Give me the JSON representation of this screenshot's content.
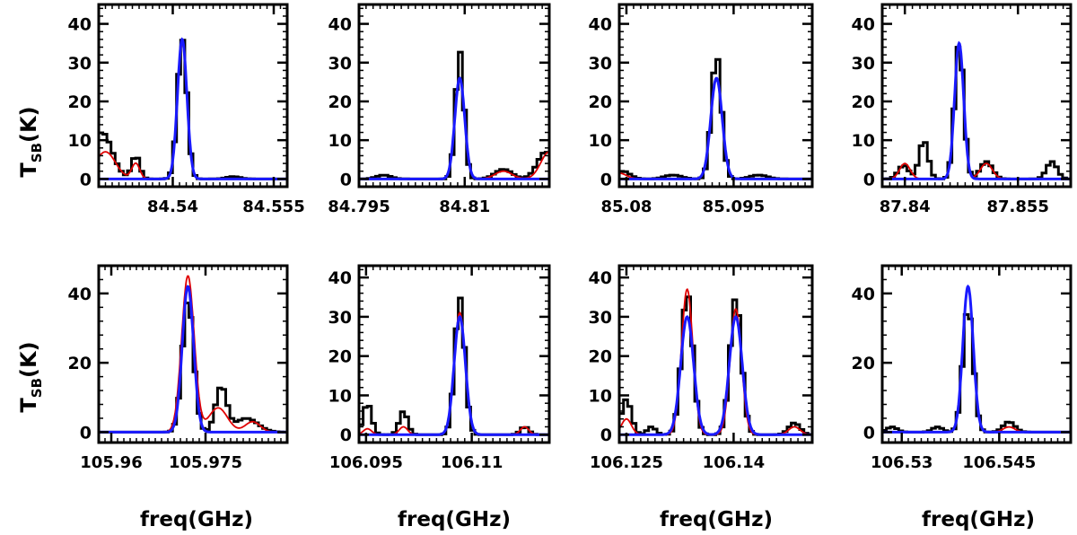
{
  "y_axis_label": {
    "main": "T",
    "sub": "SB",
    "unit": "(K)"
  },
  "x_axis_label": "freq(GHz)",
  "colors": {
    "observed": "#000000",
    "model_red": "#e00000",
    "model_blue": "#1a1aff",
    "frame": "#000000"
  },
  "chart_data": [
    {
      "type": "line",
      "title": "",
      "xlim": [
        84.529,
        84.557
      ],
      "ylim": [
        -2,
        45
      ],
      "xticks": [
        84.54,
        84.555
      ],
      "xtick_labels": [
        "84.54",
        "84.555"
      ],
      "yticks": [
        0,
        10,
        20,
        30,
        40
      ],
      "ytick_labels": [
        "0",
        "10",
        "20",
        "30",
        "40"
      ],
      "series": [
        {
          "name": "observed",
          "style": "step",
          "peaks": [
            {
              "center": 84.5414,
              "amp": 36,
              "sigma": 0.0007
            },
            {
              "center": 84.5295,
              "amp": 12,
              "sigma": 0.0015
            },
            {
              "center": 84.5345,
              "amp": 6,
              "sigma": 0.0006
            },
            {
              "center": 84.549,
              "amp": 0.6,
              "sigma": 0.001
            }
          ]
        },
        {
          "name": "model_red",
          "style": "smooth",
          "peaks": [
            {
              "center": 84.5414,
              "amp": 35,
              "sigma": 0.0007
            },
            {
              "center": 84.53,
              "amp": 7,
              "sigma": 0.0015
            },
            {
              "center": 84.5345,
              "amp": 4,
              "sigma": 0.0006
            }
          ]
        },
        {
          "name": "model_blue",
          "style": "smooth",
          "peaks": [
            {
              "center": 84.5414,
              "amp": 36,
              "sigma": 0.0007
            }
          ]
        }
      ]
    },
    {
      "type": "line",
      "title": "",
      "xlim": [
        84.795,
        84.822
      ],
      "ylim": [
        -2,
        45
      ],
      "xticks": [
        84.795,
        84.81
      ],
      "xtick_labels": [
        "84.795",
        "84.81"
      ],
      "yticks": [
        0,
        10,
        20,
        30,
        40
      ],
      "ytick_labels": [
        "0",
        "10",
        "20",
        "30",
        "40"
      ],
      "series": [
        {
          "name": "observed",
          "style": "step",
          "peaks": [
            {
              "center": 84.8093,
              "amp": 33,
              "sigma": 0.0006
            },
            {
              "center": 84.8215,
              "amp": 7,
              "sigma": 0.0012
            },
            {
              "center": 84.8155,
              "amp": 2.5,
              "sigma": 0.0012
            },
            {
              "center": 84.7985,
              "amp": 1,
              "sigma": 0.001
            }
          ]
        },
        {
          "name": "model_red",
          "style": "smooth",
          "peaks": [
            {
              "center": 84.8093,
              "amp": 26,
              "sigma": 0.0007
            },
            {
              "center": 84.822,
              "amp": 7,
              "sigma": 0.0012
            },
            {
              "center": 84.8155,
              "amp": 2,
              "sigma": 0.0012
            }
          ]
        },
        {
          "name": "model_blue",
          "style": "smooth",
          "peaks": [
            {
              "center": 84.8093,
              "amp": 26,
              "sigma": 0.0007
            }
          ]
        }
      ]
    },
    {
      "type": "line",
      "title": "",
      "xlim": [
        85.079,
        85.106
      ],
      "ylim": [
        -2,
        45
      ],
      "xticks": [
        85.08,
        85.095
      ],
      "xtick_labels": [
        "85.08",
        "85.095"
      ],
      "yticks": [
        0,
        10,
        20,
        30,
        40
      ],
      "ytick_labels": [
        "0",
        "10",
        "20",
        "30",
        "40"
      ],
      "series": [
        {
          "name": "observed",
          "style": "step",
          "peaks": [
            {
              "center": 85.0926,
              "amp": 32,
              "sigma": 0.0007
            },
            {
              "center": 85.0795,
              "amp": 2,
              "sigma": 0.001
            },
            {
              "center": 85.0865,
              "amp": 1,
              "sigma": 0.0012
            },
            {
              "center": 85.0985,
              "amp": 1,
              "sigma": 0.0012
            }
          ]
        },
        {
          "name": "model_red",
          "style": "smooth",
          "peaks": [
            {
              "center": 85.0926,
              "amp": 26,
              "sigma": 0.0008
            },
            {
              "center": 85.079,
              "amp": 1.5,
              "sigma": 0.001
            }
          ]
        },
        {
          "name": "model_blue",
          "style": "smooth",
          "peaks": [
            {
              "center": 85.0926,
              "amp": 26,
              "sigma": 0.0008
            }
          ]
        }
      ]
    },
    {
      "type": "line",
      "title": "",
      "xlim": [
        87.837,
        87.862
      ],
      "ylim": [
        -2,
        45
      ],
      "xticks": [
        87.84,
        87.855
      ],
      "xtick_labels": [
        "87.84",
        "87.855"
      ],
      "yticks": [
        0,
        10,
        20,
        30,
        40
      ],
      "ytick_labels": [
        "0",
        "10",
        "20",
        "30",
        "40"
      ],
      "series": [
        {
          "name": "observed",
          "style": "step",
          "peaks": [
            {
              "center": 87.8472,
              "amp": 35,
              "sigma": 0.0006
            },
            {
              "center": 87.8425,
              "amp": 10,
              "sigma": 0.0006
            },
            {
              "center": 87.8398,
              "amp": 3.5,
              "sigma": 0.0007
            },
            {
              "center": 87.8508,
              "amp": 4.5,
              "sigma": 0.0008
            },
            {
              "center": 87.8595,
              "amp": 4.5,
              "sigma": 0.0007
            }
          ]
        },
        {
          "name": "model_red",
          "style": "smooth",
          "peaks": [
            {
              "center": 87.8472,
              "amp": 34,
              "sigma": 0.0006
            },
            {
              "center": 87.84,
              "amp": 4,
              "sigma": 0.0007
            },
            {
              "center": 87.8508,
              "amp": 4,
              "sigma": 0.0008
            }
          ]
        },
        {
          "name": "model_blue",
          "style": "smooth",
          "peaks": [
            {
              "center": 87.8472,
              "amp": 35,
              "sigma": 0.0006
            }
          ]
        }
      ]
    },
    {
      "type": "line",
      "title": "",
      "xlim": [
        105.958,
        105.988
      ],
      "ylim": [
        -3,
        48
      ],
      "xticks": [
        105.96,
        105.975
      ],
      "xtick_labels": [
        "105.96",
        "105.975"
      ],
      "yticks": [
        0,
        20,
        40
      ],
      "ytick_labels": [
        "0",
        "20",
        "40"
      ],
      "series": [
        {
          "name": "observed",
          "style": "step",
          "peaks": [
            {
              "center": 105.9722,
              "amp": 38,
              "sigma": 0.0009
            },
            {
              "center": 105.9775,
              "amp": 13,
              "sigma": 0.0009
            },
            {
              "center": 105.9815,
              "amp": 4,
              "sigma": 0.0018
            }
          ]
        },
        {
          "name": "model_red",
          "style": "smooth",
          "peaks": [
            {
              "center": 105.9722,
              "amp": 45,
              "sigma": 0.001
            },
            {
              "center": 105.977,
              "amp": 7,
              "sigma": 0.0015
            },
            {
              "center": 105.9825,
              "amp": 3,
              "sigma": 0.0012
            }
          ]
        },
        {
          "name": "model_blue",
          "style": "smooth",
          "peaks": [
            {
              "center": 105.9722,
              "amp": 42,
              "sigma": 0.0009
            }
          ]
        }
      ]
    },
    {
      "type": "line",
      "title": "",
      "xlim": [
        106.094,
        106.121
      ],
      "ylim": [
        -2,
        43
      ],
      "xticks": [
        106.095,
        106.11
      ],
      "xtick_labels": [
        "106.095",
        "106.11"
      ],
      "yticks": [
        0,
        10,
        20,
        30,
        40
      ],
      "ytick_labels": [
        "0",
        "10",
        "20",
        "30",
        "40"
      ],
      "series": [
        {
          "name": "observed",
          "style": "step",
          "peaks": [
            {
              "center": 106.1083,
              "amp": 35,
              "sigma": 0.0007
            },
            {
              "center": 106.0952,
              "amp": 8,
              "sigma": 0.0006
            },
            {
              "center": 106.1003,
              "amp": 6,
              "sigma": 0.0006
            },
            {
              "center": 106.1175,
              "amp": 2,
              "sigma": 0.0006
            }
          ]
        },
        {
          "name": "model_red",
          "style": "smooth",
          "peaks": [
            {
              "center": 106.1083,
              "amp": 31,
              "sigma": 0.0008
            },
            {
              "center": 106.1175,
              "amp": 2,
              "sigma": 0.0006
            },
            {
              "center": 106.0952,
              "amp": 1.5,
              "sigma": 0.0006
            },
            {
              "center": 106.1003,
              "amp": 2,
              "sigma": 0.0006
            }
          ]
        },
        {
          "name": "model_blue",
          "style": "smooth",
          "peaks": [
            {
              "center": 106.1083,
              "amp": 30,
              "sigma": 0.0008
            }
          ]
        }
      ]
    },
    {
      "type": "line",
      "title": "",
      "xlim": [
        106.124,
        106.151
      ],
      "ylim": [
        -2,
        43
      ],
      "xticks": [
        106.125,
        106.14
      ],
      "xtick_labels": [
        "106.125",
        "106.14"
      ],
      "yticks": [
        0,
        10,
        20,
        30,
        40
      ],
      "ytick_labels": [
        "0",
        "10",
        "20",
        "30",
        "40"
      ],
      "series": [
        {
          "name": "observed",
          "style": "step",
          "peaks": [
            {
              "center": 106.1335,
              "amp": 36,
              "sigma": 0.0008
            },
            {
              "center": 106.1403,
              "amp": 35,
              "sigma": 0.0008
            },
            {
              "center": 106.125,
              "amp": 9,
              "sigma": 0.0007
            },
            {
              "center": 106.1285,
              "amp": 2,
              "sigma": 0.0006
            },
            {
              "center": 106.1485,
              "amp": 3,
              "sigma": 0.0008
            }
          ]
        },
        {
          "name": "model_red",
          "style": "smooth",
          "peaks": [
            {
              "center": 106.1335,
              "amp": 37,
              "sigma": 0.0008
            },
            {
              "center": 106.1403,
              "amp": 32,
              "sigma": 0.0008
            },
            {
              "center": 106.125,
              "amp": 4,
              "sigma": 0.0007
            },
            {
              "center": 106.1485,
              "amp": 2,
              "sigma": 0.0008
            }
          ]
        },
        {
          "name": "model_blue",
          "style": "smooth",
          "peaks": [
            {
              "center": 106.1335,
              "amp": 30,
              "sigma": 0.0009
            },
            {
              "center": 106.1403,
              "amp": 30,
              "sigma": 0.0009
            }
          ]
        }
      ]
    },
    {
      "type": "line",
      "title": "",
      "xlim": [
        106.527,
        106.556
      ],
      "ylim": [
        -3,
        48
      ],
      "xticks": [
        106.53,
        106.545
      ],
      "xtick_labels": [
        "106.53",
        "106.545"
      ],
      "yticks": [
        0,
        20,
        40
      ],
      "ytick_labels": [
        "0",
        "20",
        "40"
      ],
      "series": [
        {
          "name": "observed",
          "style": "step",
          "peaks": [
            {
              "center": 106.5402,
              "amp": 36,
              "sigma": 0.0008
            },
            {
              "center": 106.5465,
              "amp": 3,
              "sigma": 0.0009
            },
            {
              "center": 106.5355,
              "amp": 1.5,
              "sigma": 0.0008
            },
            {
              "center": 106.5285,
              "amp": 1.5,
              "sigma": 0.0008
            }
          ]
        },
        {
          "name": "model_red",
          "style": "smooth",
          "peaks": [
            {
              "center": 106.5402,
              "amp": 42,
              "sigma": 0.0008
            },
            {
              "center": 106.5465,
              "amp": 1.5,
              "sigma": 0.0009
            }
          ]
        },
        {
          "name": "model_blue",
          "style": "smooth",
          "peaks": [
            {
              "center": 106.5402,
              "amp": 42,
              "sigma": 0.0008
            }
          ]
        }
      ]
    }
  ]
}
